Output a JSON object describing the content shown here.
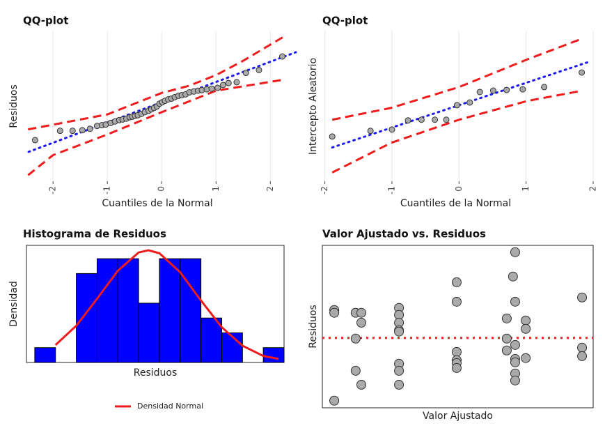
{
  "chart_data": [
    {
      "type": "qq",
      "title": "QQ-plot",
      "x_label": "Cuantiles de la Normal",
      "y_label": "Residuos",
      "xlim": [
        -2.63,
        2.47
      ],
      "ylim": [
        -3.9,
        3.5
      ],
      "xticks": [
        -2,
        -1,
        0,
        1,
        2
      ],
      "grid": true,
      "point_color": "#aaaaaa",
      "line_color": "#1a1aee",
      "band_color": "#ee1c1c",
      "points": {
        "x": [
          -2.33,
          -1.87,
          -1.64,
          -1.46,
          -1.32,
          -1.19,
          -1.1,
          -1.03,
          -0.94,
          -0.86,
          -0.78,
          -0.72,
          -0.65,
          -0.59,
          -0.54,
          -0.49,
          -0.44,
          -0.37,
          -0.31,
          -0.24,
          -0.19,
          -0.14,
          -0.09,
          -0.04,
          0.01,
          0.06,
          0.12,
          0.18,
          0.24,
          0.31,
          0.37,
          0.44,
          0.51,
          0.59,
          0.67,
          0.74,
          0.83,
          0.92,
          1.03,
          1.13,
          1.23,
          1.38,
          1.55,
          1.79,
          2.22
        ],
        "y": [
          -1.87,
          -1.41,
          -1.41,
          -1.38,
          -1.31,
          -1.17,
          -1.13,
          -1.1,
          -1.02,
          -0.95,
          -0.88,
          -0.85,
          -0.81,
          -0.74,
          -0.71,
          -0.67,
          -0.64,
          -0.57,
          -0.49,
          -0.42,
          -0.35,
          -0.28,
          -0.21,
          -0.07,
          0,
          0.07,
          0.14,
          0.18,
          0.25,
          0.32,
          0.35,
          0.39,
          0.49,
          0.53,
          0.57,
          0.6,
          0.64,
          0.67,
          0.71,
          0.85,
          0.95,
          0.99,
          1.45,
          1.59,
          2.26
        ]
      },
      "reference_line": {
        "x": [
          -2.45,
          2.47
        ],
        "y": [
          -2.45,
          2.47
        ]
      },
      "upper_band": {
        "x": [
          -2.46,
          -1,
          0,
          0.5,
          1,
          1.5,
          2.28
        ],
        "y": [
          -1.34,
          -0.6,
          0.46,
          0.81,
          1.34,
          2.05,
          3.29
        ]
      },
      "lower_band": {
        "x": [
          -2.46,
          -2,
          -1,
          0,
          1,
          2.28
        ],
        "y": [
          -3.6,
          -2.61,
          -1.59,
          -0.49,
          0.57,
          1.13
        ]
      }
    },
    {
      "type": "qq",
      "title": "QQ-plot",
      "x_label": "Cuantiles de la Normal",
      "y_label": "Intercepto Aleatorio",
      "xlim": [
        -2.1,
        2.0
      ],
      "ylim": [
        -3.4,
        3.3
      ],
      "xticks": [
        -2,
        -1,
        0,
        1,
        2
      ],
      "grid": true,
      "point_color": "#aaaaaa",
      "line_color": "#1a1aee",
      "band_color": "#ee1c1c",
      "points": {
        "x": [
          -1.89,
          -1.32,
          -1.0,
          -0.76,
          -0.56,
          -0.36,
          -0.19,
          -0.03,
          0.16,
          0.31,
          0.51,
          0.71,
          0.95,
          1.27,
          1.83
        ],
        "y": [
          -1.4,
          -1.15,
          -1.09,
          -0.68,
          -0.65,
          -0.65,
          -0.65,
          0.0,
          0.12,
          0.59,
          0.65,
          0.68,
          0.71,
          0.81,
          1.46
        ]
      },
      "reference_line": {
        "x": [
          -1.89,
          1.97
        ],
        "y": [
          -1.89,
          1.97
        ]
      },
      "upper_band": {
        "x": [
          -1.89,
          -1.01,
          0,
          1.02,
          1.84
        ],
        "y": [
          -0.65,
          -0.12,
          0.81,
          2.05,
          2.98
        ]
      },
      "lower_band": {
        "x": [
          -1.89,
          -1.01,
          0,
          1.02,
          1.84
        ],
        "y": [
          -3.01,
          -1.68,
          -0.65,
          0.19,
          0.65
        ]
      }
    },
    {
      "type": "histogram",
      "title": "Histograma de Residuos",
      "x_label": "Residuos",
      "y_label": "Densidad",
      "xlim": [
        -6.4,
        6.0
      ],
      "ylim": [
        0,
        7.9
      ],
      "color": "#0000ff",
      "bins": [
        -6,
        -5,
        -4,
        -3,
        -2,
        -1,
        0,
        1,
        2,
        3,
        4,
        5,
        6
      ],
      "counts": [
        1,
        0,
        6,
        7,
        7,
        4,
        7,
        7,
        3,
        2,
        0,
        1
      ],
      "curve": {
        "name": "Densidad Normal",
        "color": "#ee1c1c",
        "x": [
          -5,
          -4,
          -3,
          -2,
          -1,
          -0.53,
          0,
          1,
          2,
          3,
          4,
          5,
          5.74
        ],
        "y": [
          1.18,
          2.48,
          4.3,
          6.19,
          7.42,
          7.57,
          7.37,
          6.09,
          4.18,
          2.38,
          1.13,
          0.44,
          0.24
        ]
      }
    },
    {
      "type": "scatter",
      "title": "Valor Ajustado vs. Residuos",
      "x_label": "Valor Ajustado",
      "y_label": "Residuos",
      "xlim": [
        0,
        10
      ],
      "ylim": [
        -4.3,
        5.7
      ],
      "color": "#aaaaaa",
      "hline": 0,
      "hline_color": "#ee1c1c",
      "x": [
        0.44,
        0.44,
        1.23,
        1.44,
        1.44,
        1.23,
        1.23,
        1.44,
        0.44,
        2.83,
        2.83,
        2.83,
        2.83,
        2.83,
        2.83,
        2.83,
        2.83,
        4.96,
        4.96,
        4.96,
        4.96,
        4.96,
        4.96,
        6.81,
        6.81,
        6.81,
        7.04,
        7.12,
        7.12,
        7.12,
        7.12,
        7.12,
        7.12,
        7.12,
        7.51,
        7.51,
        7.51,
        9.59,
        9.59,
        9.59
      ],
      "y": [
        1.72,
        1.55,
        1.55,
        1.55,
        0.94,
        -0.04,
        -2.02,
        -2.88,
        -3.86,
        1.85,
        1.42,
        0.94,
        0.47,
        0.39,
        -1.59,
        -2.02,
        -2.88,
        3.43,
        2.23,
        -0.86,
        -1.37,
        -1.55,
        -1.85,
        1.2,
        -0.04,
        -0.77,
        3.78,
        5.28,
        2.23,
        -0.43,
        -1.29,
        -1.5,
        -2.19,
        -2.62,
        1.07,
        0.56,
        -1.24,
        2.49,
        -0.6,
        -1.12
      ]
    }
  ]
}
